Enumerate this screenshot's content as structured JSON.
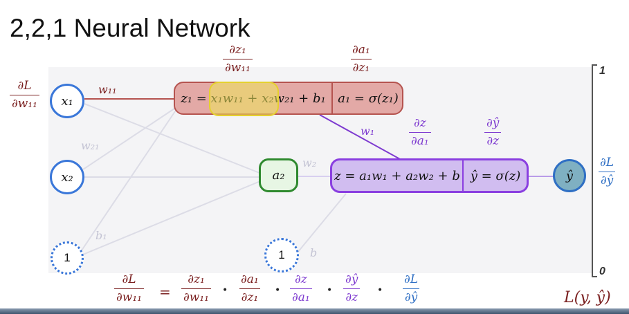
{
  "title": "2,2,1 Neural Network",
  "colors": {
    "red": "#7a1f1f",
    "purple": "#7e3bd0",
    "blue": "#2f6fc4",
    "green": "#2f8a2f",
    "faint": "#c4c4d4"
  },
  "scale": {
    "top": "1",
    "bottom": "0"
  },
  "nodes": {
    "x1": "x₁",
    "x2": "x₂",
    "bias1": "1",
    "bias2": "1",
    "a2": "a₂",
    "yhat": "ŷ"
  },
  "weights": {
    "w11": "w₁₁",
    "w21": "w₂₁",
    "b1": "b₁",
    "w1": "w₁",
    "w2": "w₂",
    "b": "b"
  },
  "hidden_box": {
    "linear": "z₁ = x₁w₁₁ + x₂w₂₁ + b₁",
    "activation": "a₁ = σ(z₁)"
  },
  "output_box": {
    "linear": "z = a₁w₁ + a₂w₂ + b",
    "activation": "ŷ = σ(z)"
  },
  "fractions": {
    "dz1_dw11": {
      "num": "∂z₁",
      "den": "∂w₁₁"
    },
    "da1_dz1": {
      "num": "∂a₁",
      "den": "∂z₁"
    },
    "dL_dw11": {
      "num": "∂L",
      "den": "∂w₁₁"
    },
    "dz_da1": {
      "num": "∂z",
      "den": "∂a₁"
    },
    "dyhat_dz": {
      "num": "∂ŷ",
      "den": "∂z"
    },
    "dL_dyhat": {
      "num": "∂L",
      "den": "∂ŷ"
    }
  },
  "equation": {
    "equals": "=",
    "dot": "•",
    "loss": "L(y, ŷ)"
  }
}
